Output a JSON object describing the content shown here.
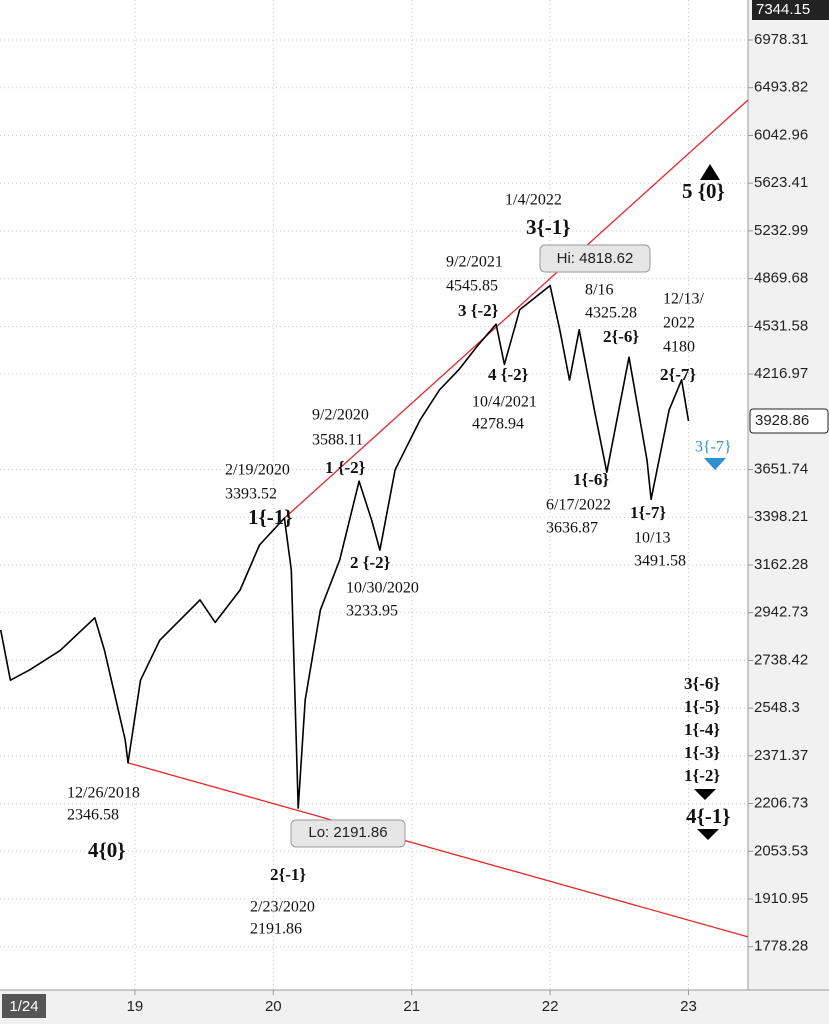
{
  "chart_data": {
    "type": "line",
    "log_scale": true,
    "grid": true,
    "xlim": [
      2018.025,
      2023.43
    ],
    "xticks": [
      {
        "value": 2019,
        "label": "19"
      },
      {
        "value": 2020,
        "label": "20"
      },
      {
        "value": 2021,
        "label": "21"
      },
      {
        "value": 2022,
        "label": "22"
      },
      {
        "value": 2023,
        "label": "23"
      }
    ],
    "x_start_label": "1/24",
    "ylim": [
      1666,
      7412
    ],
    "yticks": [
      6978.31,
      6493.82,
      6042.96,
      5623.41,
      5232.99,
      4869.68,
      4531.58,
      4216.97,
      3651.74,
      3398.21,
      3162.28,
      2942.73,
      2738.42,
      2548.3,
      2371.37,
      2206.73,
      2053.53,
      1910.95,
      1778.28
    ],
    "top_price": 7344.15,
    "last_price": 3928.86,
    "x": [
      2018.03,
      2018.1,
      2018.24,
      2018.46,
      2018.71,
      2018.78,
      2018.93,
      2018.95,
      2019.04,
      2019.18,
      2019.47,
      2019.58,
      2019.76,
      2019.9,
      2020.08,
      2020.13,
      2020.18,
      2020.23,
      2020.34,
      2020.48,
      2020.62,
      2020.71,
      2020.77,
      2020.88,
      2021.06,
      2021.2,
      2021.34,
      2021.48,
      2021.61,
      2021.67,
      2021.78,
      2022.0,
      2022.07,
      2022.14,
      2022.21,
      2022.32,
      2022.41,
      2022.57,
      2022.7,
      2022.73,
      2022.86,
      2022.95,
      2023.0
    ],
    "series": [
      {
        "color": "#000000",
        "values": [
          2867,
          2658,
          2700,
          2780,
          2920,
          2780,
          2429,
          2346.58,
          2658,
          2823,
          3000,
          2900,
          3045,
          3259,
          3393.52,
          3139,
          2191.86,
          2580,
          2955,
          3186,
          3588.11,
          3384,
          3233.95,
          3650,
          3934,
          4117,
          4245,
          4405,
          4545.85,
          4278.94,
          4646,
          4818.62,
          4508,
          4179,
          4508,
          3994,
          3636.87,
          4325.28,
          3704,
          3491.58,
          3994,
          4180,
          3928.86
        ]
      }
    ],
    "trendlines": [
      {
        "color": "#e8262a",
        "x": [
          2020.08,
          2023.43
        ],
        "values": [
          3393.52,
          6375
        ]
      },
      {
        "color": "#e8262a",
        "x": [
          2018.95,
          2023.43
        ],
        "values": [
          2346.58,
          1805
        ]
      }
    ],
    "high_label": "Hi: 4818.62",
    "low_label": "Lo: 2191.86",
    "annotations": [
      "12/26/2018",
      "2346.58",
      "4{0}",
      "2{-1}",
      "2/23/2020",
      "2191.86",
      "2/19/2020",
      "3393.52",
      "1{-1}",
      "9/2/2020",
      "3588.11",
      "1 {-2}",
      "2 {-2}",
      "10/30/2020",
      "3233.95",
      "9/2/2021",
      "4545.85",
      "3 {-2}",
      "4 {-2}",
      "10/4/2021",
      "4278.94",
      "1/4/2022",
      "3{-1}",
      "8/16",
      "4325.28",
      "2{-6}",
      "12/13/",
      "2022",
      "4180",
      "2{-7}",
      "1{-6}",
      "6/17/2022",
      "3636.87",
      "1{-7}",
      "10/13",
      "3491.58",
      "3{-7}",
      "5 {0}",
      "3{-6}",
      "1{-5}",
      "1{-4}",
      "1{-3}",
      "1{-2}",
      "4{-1}"
    ]
  }
}
